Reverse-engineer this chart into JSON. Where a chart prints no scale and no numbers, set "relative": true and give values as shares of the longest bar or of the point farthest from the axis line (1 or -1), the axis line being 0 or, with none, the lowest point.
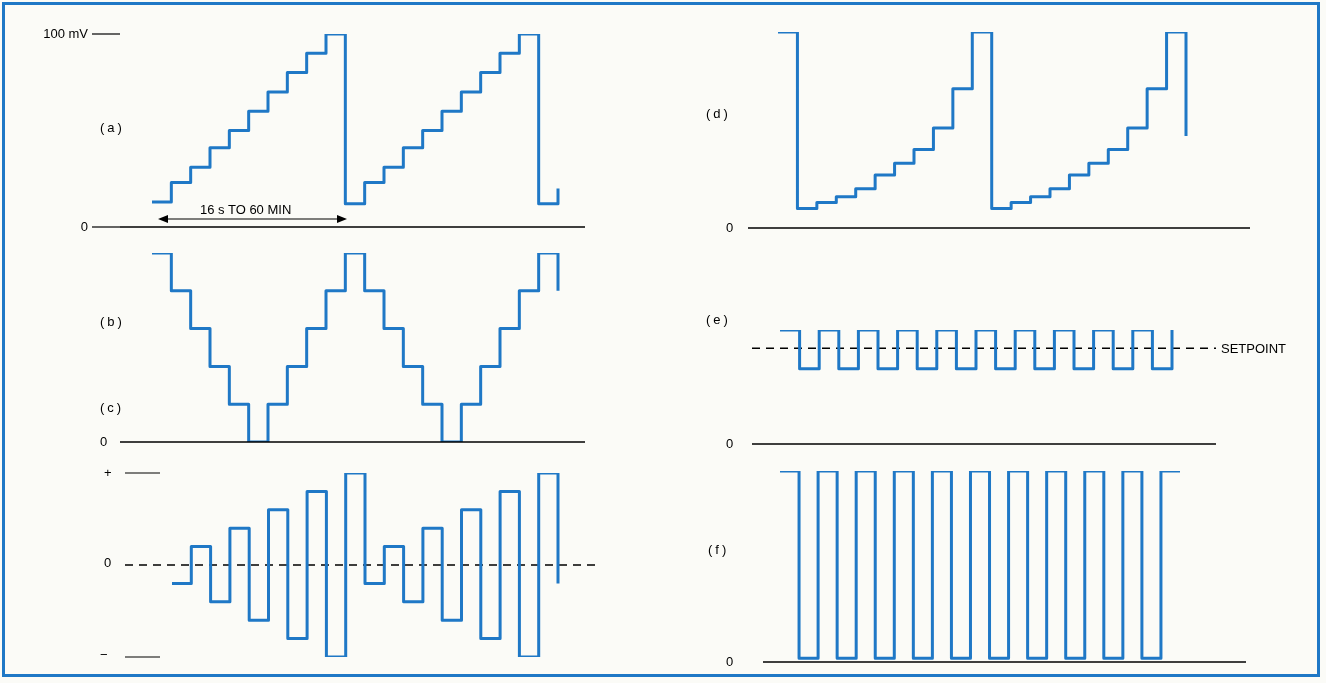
{
  "chart_data": [
    {
      "type": "step",
      "title": "(a)",
      "categories": [
        null,
        null,
        null,
        null,
        null,
        null,
        null,
        null,
        null,
        null,
        null,
        null,
        null,
        null,
        null,
        null,
        null,
        null,
        null,
        null,
        null,
        null
      ],
      "series": [
        {
          "color": "#1f78c6",
          "values": [
            13,
            23,
            31,
            41,
            50,
            60,
            70,
            80,
            90,
            100,
            12,
            23,
            31,
            41,
            50,
            60,
            70,
            80,
            90,
            100,
            12,
            20
          ]
        }
      ],
      "ylim": [
        0,
        100
      ],
      "yticks": [
        0,
        {
          "value": 100,
          "label": "100 mV"
        }
      ],
      "tick_labels": "y",
      "annotations": [
        "16 s TO 60 MIN"
      ]
    },
    {
      "type": "step",
      "title": "(b)",
      "relative": true,
      "categories": [
        null,
        null,
        null,
        null,
        null,
        null,
        null,
        null,
        null,
        null,
        null,
        null,
        null,
        null,
        null,
        null,
        null,
        null,
        null,
        null,
        null,
        null
      ],
      "series": [
        {
          "color": "#1f78c6",
          "values": [
            1,
            0.8,
            0.6,
            0.4,
            0.2,
            0,
            0.2,
            0.4,
            0.6,
            0.8,
            1,
            0.8,
            0.6,
            0.4,
            0.2,
            0,
            0.2,
            0.4,
            0.6,
            0.8,
            1,
            0.8
          ]
        }
      ],
      "tick_labels": false,
      "annotations": [
        "0"
      ]
    },
    {
      "type": "step",
      "title": "(c)",
      "relative": true,
      "categories": [
        null,
        null,
        null,
        null,
        null,
        null,
        null,
        null,
        null,
        null,
        null,
        null,
        null,
        null,
        null,
        null,
        null,
        null,
        null,
        null,
        null
      ],
      "series": [
        {
          "color": "#1f78c6",
          "values": [
            -0.2,
            0.2,
            -0.4,
            0.4,
            -0.6,
            0.6,
            -0.8,
            0.8,
            -1,
            1,
            -0.2,
            0.2,
            -0.4,
            0.4,
            -0.6,
            0.6,
            -0.8,
            0.8,
            -1,
            1,
            -0.2
          ]
        }
      ],
      "tick_labels": false,
      "annotations": [
        "+",
        "0",
        "−"
      ],
      "ref_lines": [
        {
          "axis": "y",
          "value": 0,
          "color": "#000000",
          "line_style": "dashed"
        }
      ]
    },
    {
      "type": "step",
      "title": "(d)",
      "relative": true,
      "categories": [
        null,
        null,
        null,
        null,
        null,
        null,
        null,
        null,
        null,
        null,
        null,
        null,
        null,
        null,
        null,
        null,
        null,
        null,
        null,
        null,
        null,
        null
      ],
      "series": [
        {
          "color": "#1f78c6",
          "values": [
            1,
            0.1,
            0.13,
            0.16,
            0.2,
            0.27,
            0.33,
            0.4,
            0.51,
            0.71,
            1,
            0.1,
            0.13,
            0.16,
            0.2,
            0.27,
            0.33,
            0.4,
            0.51,
            0.71,
            1,
            0.47
          ]
        }
      ],
      "tick_labels": false,
      "annotations": [
        "0"
      ]
    },
    {
      "type": "step",
      "title": "(e)",
      "relative": true,
      "categories": [
        null,
        null,
        null,
        null,
        null,
        null,
        null,
        null,
        null,
        null,
        null,
        null,
        null,
        null,
        null,
        null,
        null,
        null,
        null,
        null,
        null
      ],
      "series": [
        {
          "color": "#1f78c6",
          "values": [
            1,
            0.66,
            1,
            0.66,
            1,
            0.66,
            1,
            0.66,
            1,
            0.66,
            1,
            0.66,
            1,
            0.66,
            1,
            0.66,
            1,
            0.66,
            1,
            0.66,
            1
          ]
        }
      ],
      "tick_labels": false,
      "annotations": [
        "0"
      ],
      "ref_lines": [
        {
          "axis": "y",
          "value": 0.84,
          "label": "SETPOINT",
          "color": "#000000",
          "line_style": "dashed"
        }
      ]
    },
    {
      "type": "step",
      "title": "(f)",
      "relative": true,
      "categories": [
        null,
        null,
        null,
        null,
        null,
        null,
        null,
        null,
        null,
        null,
        null,
        null,
        null,
        null,
        null,
        null,
        null,
        null,
        null,
        null,
        null,
        null
      ],
      "series": [
        {
          "color": "#1f78c6",
          "values": [
            1,
            0.02,
            1,
            0.02,
            1,
            0.02,
            1,
            0.02,
            1,
            0.02,
            1,
            0.02,
            1,
            0.02,
            1,
            0.02,
            1,
            0.02,
            1,
            0.02,
            1,
            1
          ]
        }
      ],
      "tick_labels": false,
      "annotations": [
        "0"
      ]
    }
  ]
}
